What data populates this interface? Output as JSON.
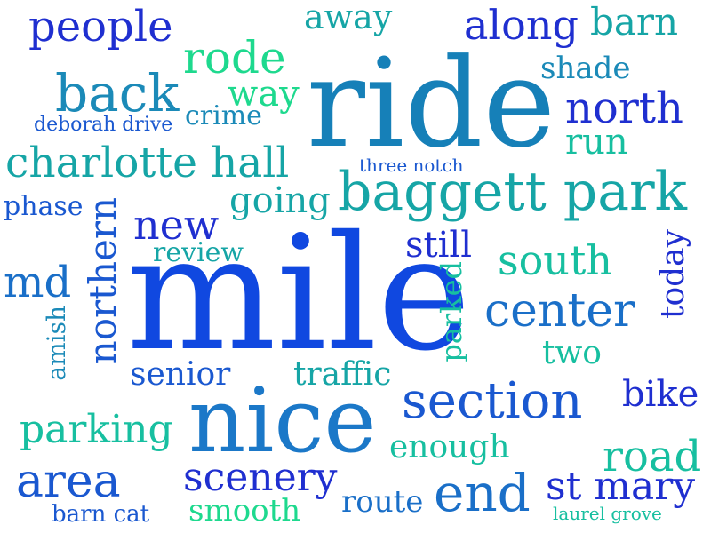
{
  "colors": {
    "background": "#ffffff",
    "dark_blue": "#1f2fd0",
    "royal_blue": "#1048e0",
    "mid_blue": "#1a6fc8",
    "steel_blue": "#1b8ab8",
    "teal": "#16a5a6",
    "sea_green": "#17bfa0",
    "green": "#1ed98e"
  },
  "words": [
    {
      "text": "mile",
      "color": "#1048e0"
    },
    {
      "text": "ride",
      "color": "#1680b8"
    },
    {
      "text": "nice",
      "color": "#1b78c8"
    },
    {
      "text": "baggett park",
      "color": "#16a5a6"
    },
    {
      "text": "section",
      "color": "#1a58d0"
    },
    {
      "text": "charlotte hall",
      "color": "#16a5a6"
    },
    {
      "text": "center",
      "color": "#1a6fc8"
    },
    {
      "text": "back",
      "color": "#1b8ab8"
    },
    {
      "text": "end",
      "color": "#1a6fc8"
    },
    {
      "text": "area",
      "color": "#1a58d0"
    },
    {
      "text": "people",
      "color": "#1f2fd0"
    },
    {
      "text": "rode",
      "color": "#1ed98e"
    },
    {
      "text": "along",
      "color": "#1f2fd0"
    },
    {
      "text": "north",
      "color": "#1f2fd0"
    },
    {
      "text": "new",
      "color": "#1f2fd0"
    },
    {
      "text": "md",
      "color": "#1a6fc8"
    },
    {
      "text": "st mary",
      "color": "#1f2fd0"
    },
    {
      "text": "road",
      "color": "#17bfa0"
    },
    {
      "text": "parking",
      "color": "#17bfa0"
    },
    {
      "text": "scenery",
      "color": "#1f2fd0"
    },
    {
      "text": "south",
      "color": "#17bfa0"
    },
    {
      "text": "northern",
      "color": "#1a58d0"
    },
    {
      "text": "barn",
      "color": "#16a5a6"
    },
    {
      "text": "away",
      "color": "#16a5a6"
    },
    {
      "text": "way",
      "color": "#1ed98e"
    },
    {
      "text": "run",
      "color": "#17bfa0"
    },
    {
      "text": "shade",
      "color": "#1b8ab8"
    },
    {
      "text": "going",
      "color": "#16a5a6"
    },
    {
      "text": "still",
      "color": "#1f2fd0"
    },
    {
      "text": "bike",
      "color": "#1f2fd0"
    },
    {
      "text": "enough",
      "color": "#17bfa0"
    },
    {
      "text": "smooth",
      "color": "#1ed98e"
    },
    {
      "text": "route",
      "color": "#1a6fc8"
    },
    {
      "text": "senior",
      "color": "#1a58d0"
    },
    {
      "text": "traffic",
      "color": "#16a5a6"
    },
    {
      "text": "crime",
      "color": "#1b8ab8"
    },
    {
      "text": "two",
      "color": "#17bfa0"
    },
    {
      "text": "today",
      "color": "#1f2fd0"
    },
    {
      "text": "parked",
      "color": "#17bfa0"
    },
    {
      "text": "amish",
      "color": "#1b8ab8"
    },
    {
      "text": "review",
      "color": "#16a5a6"
    },
    {
      "text": "phase",
      "color": "#1a58d0"
    },
    {
      "text": "barn cat",
      "color": "#1a58d0"
    },
    {
      "text": "deborah drive",
      "color": "#1a58d0"
    },
    {
      "text": "three notch",
      "color": "#1a58d0"
    },
    {
      "text": "laurel grove",
      "color": "#17bfa0"
    }
  ]
}
